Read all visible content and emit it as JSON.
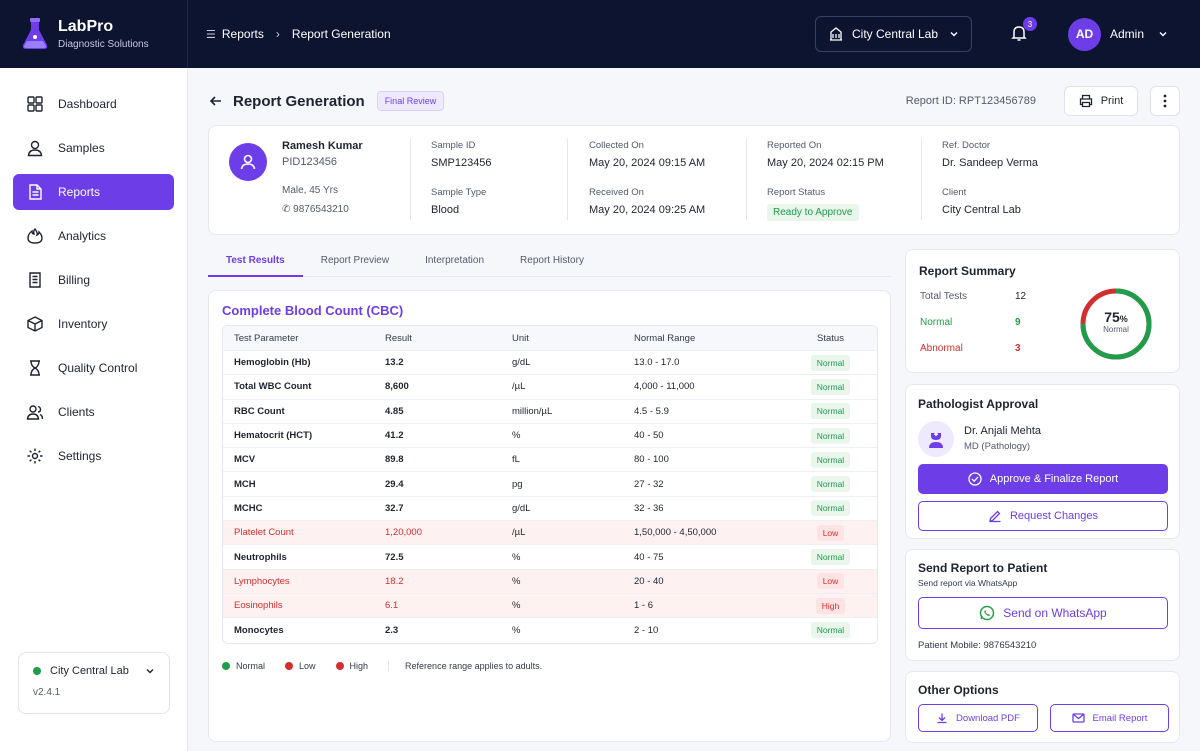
{
  "brand": {
    "name": "LabPro",
    "tagline": "Diagnostic Solutions"
  },
  "breadcrumb": {
    "parent": "Reports",
    "current": "Report Generation"
  },
  "header": {
    "lab_selector": "City Central Lab",
    "notifications_count": "3",
    "user_initials": "AD",
    "user_name": "Admin"
  },
  "sidebar": {
    "items": [
      {
        "label": "Dashboard",
        "icon": "grid-icon"
      },
      {
        "label": "Samples",
        "icon": "user-icon"
      },
      {
        "label": "Reports",
        "icon": "document-icon"
      },
      {
        "label": "Analytics",
        "icon": "fire-icon"
      },
      {
        "label": "Billing",
        "icon": "receipt-icon"
      },
      {
        "label": "Inventory",
        "icon": "box-icon"
      },
      {
        "label": "Quality Control",
        "icon": "hourglass-icon"
      },
      {
        "label": "Clients",
        "icon": "users-icon"
      },
      {
        "label": "Settings",
        "icon": "gear-icon"
      }
    ],
    "active_index": 2,
    "lab_name": "City Central Lab",
    "version": "v2.4.1"
  },
  "page": {
    "title": "Report Generation",
    "status_chip": "Final Review",
    "report_id": "Report ID:  RPT123456789",
    "print_label": "Print"
  },
  "patient": {
    "name": "Ramesh Kumar",
    "pid": "PID123456",
    "demographics": "Male, 45 Yrs",
    "phone": "9876543210",
    "sample_id_label": "Sample ID",
    "sample_id": "SMP123456",
    "sample_type_label": "Sample Type",
    "sample_type": "Blood",
    "collected_label": "Collected On",
    "collected": "May 20, 2024 09:15 AM",
    "received_label": "Received On",
    "received": "May 20, 2024 09:25 AM",
    "reported_label": "Reported On",
    "reported": "May 20, 2024 02:15 PM",
    "report_status_label": "Report Status",
    "report_status": "Ready to Approve",
    "ref_doctor_label": "Ref. Doctor",
    "ref_doctor": "Dr. Sandeep Verma",
    "client_label": "Client",
    "client": "City Central Lab"
  },
  "tabs": [
    "Test Results",
    "Report Preview",
    "Interpretation",
    "Report History"
  ],
  "results": {
    "title": "Complete Blood Count (CBC)",
    "columns": [
      "Test Parameter",
      "Result",
      "Unit",
      "Normal Range",
      "Status"
    ],
    "rows": [
      {
        "param": "Hemoglobin (Hb)",
        "result": "13.2",
        "unit": "g/dL",
        "range": "13.0 - 17.0",
        "status": "Normal",
        "flag": "normal"
      },
      {
        "param": "Total WBC Count",
        "result": "8,600",
        "unit": "/µL",
        "range": "4,000 - 11,000",
        "status": "Normal",
        "flag": "normal"
      },
      {
        "param": "RBC Count",
        "result": "4.85",
        "unit": "million/µL",
        "range": "4.5 - 5.9",
        "status": "Normal",
        "flag": "normal"
      },
      {
        "param": "Hematocrit (HCT)",
        "result": "41.2",
        "unit": "%",
        "range": "40 - 50",
        "status": "Normal",
        "flag": "normal"
      },
      {
        "param": "MCV",
        "result": "89.8",
        "unit": "fL",
        "range": "80 - 100",
        "status": "Normal",
        "flag": "normal"
      },
      {
        "param": "MCH",
        "result": "29.4",
        "unit": "pg",
        "range": "27 - 32",
        "status": "Normal",
        "flag": "normal"
      },
      {
        "param": "MCHC",
        "result": "32.7",
        "unit": "g/dL",
        "range": "32 - 36",
        "status": "Normal",
        "flag": "normal"
      },
      {
        "param": "Platelet Count",
        "result": "1,20,000",
        "unit": "/µL",
        "range": "1,50,000 - 4,50,000",
        "status": "Low",
        "flag": "low"
      },
      {
        "param": "Neutrophils",
        "result": "72.5",
        "unit": "%",
        "range": "40 - 75",
        "status": "Normal",
        "flag": "normal"
      },
      {
        "param": "Lymphocytes",
        "result": "18.2",
        "unit": "%",
        "range": "20 - 40",
        "status": "Low",
        "flag": "low"
      },
      {
        "param": "Eosinophils",
        "result": "6.1",
        "unit": "%",
        "range": "1 - 6",
        "status": "High",
        "flag": "high"
      },
      {
        "param": "Monocytes",
        "result": "2.3",
        "unit": "%",
        "range": "2 - 10",
        "status": "Normal",
        "flag": "normal"
      }
    ],
    "legend": {
      "normal": "Normal",
      "low": "Low",
      "high": "High",
      "note": "Reference range applies to adults."
    }
  },
  "summary": {
    "title": "Report Summary",
    "total_label": "Total Tests",
    "total": "12",
    "normal_label": "Normal",
    "normal": "9",
    "abnormal_label": "Abnormal",
    "abnormal": "3",
    "percent": "75",
    "percent_sign": "%",
    "percent_label": "Normal",
    "normal_fraction": 0.75
  },
  "approval": {
    "title": "Pathologist Approval",
    "doctor": "Dr. Anjali Mehta",
    "qualification": "MD (Pathology)",
    "approve_label": "Approve & Finalize Report",
    "changes_label": "Request Changes"
  },
  "send": {
    "title": "Send Report to Patient",
    "subtitle": "Send report via WhatsApp",
    "whatsapp_label": "Send on WhatsApp",
    "mobile": "Patient Mobile: 9876543210"
  },
  "other": {
    "title": "Other Options",
    "download_label": "Download PDF",
    "email_label": "Email Report"
  },
  "colors": {
    "accent": "#6d3ee8",
    "navy": "#0d1430",
    "green": "#1f9d4a",
    "red": "#d32f2f"
  }
}
